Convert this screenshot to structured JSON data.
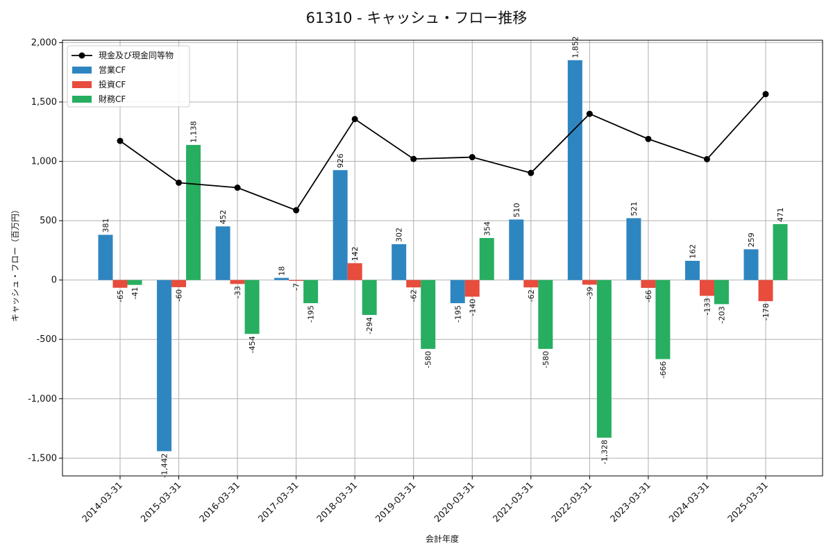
{
  "chart_data": {
    "type": "bar",
    "title": "61310 - キャッシュ・フロー推移",
    "xlabel": "会計年度",
    "ylabel": "キャッシュ・フロー（百万円）",
    "ylim": [
      -1650,
      2020
    ],
    "yticks": [
      -1500,
      -1000,
      -500,
      0,
      500,
      1000,
      1500,
      2000
    ],
    "ytick_labels": [
      "-1,500",
      "-1,000",
      "-500",
      "0",
      "500",
      "1,000",
      "1,500",
      "2,000"
    ],
    "grid": true,
    "legend_position": "top-left",
    "categories": [
      "2014-03-31",
      "2015-03-31",
      "2016-03-31",
      "2017-03-31",
      "2018-03-31",
      "2019-03-31",
      "2020-03-31",
      "2021-03-31",
      "2022-03-31",
      "2023-03-31",
      "2024-03-31",
      "2025-03-31"
    ],
    "series": [
      {
        "name": "営業CF",
        "kind": "bar",
        "color": "#2e86c1",
        "values": [
          381,
          -1442,
          452,
          18,
          926,
          302,
          -195,
          510,
          1852,
          521,
          162,
          259
        ],
        "labels": [
          "381",
          "-1,442",
          "452",
          "18",
          "926",
          "302",
          "-195",
          "510",
          "1,852",
          "521",
          "162",
          "259"
        ]
      },
      {
        "name": "投資CF",
        "kind": "bar",
        "color": "#e74c3c",
        "values": [
          -65,
          -60,
          -33,
          -7,
          142,
          -62,
          -140,
          -62,
          -39,
          -66,
          -133,
          -178
        ],
        "labels": [
          "-65",
          "-60",
          "-33",
          "-7",
          "142",
          "-62",
          "-140",
          "-62",
          "-39",
          "-66",
          "-133",
          "-178"
        ]
      },
      {
        "name": "財務CF",
        "kind": "bar",
        "color": "#27ae60",
        "values": [
          -41,
          1138,
          -454,
          -195,
          -294,
          -580,
          354,
          -580,
          -1328,
          -666,
          -203,
          471
        ],
        "labels": [
          "-41",
          "1,138",
          "-454",
          "-195",
          "-294",
          "-580",
          "354",
          "-580",
          "-1,328",
          "-666",
          "-203",
          "471"
        ]
      },
      {
        "name": "現金及び現金同等物",
        "kind": "line",
        "color": "#000000",
        "values": [
          1172,
          820,
          778,
          588,
          1356,
          1020,
          1035,
          902,
          1400,
          1188,
          1018,
          1566
        ]
      }
    ]
  }
}
